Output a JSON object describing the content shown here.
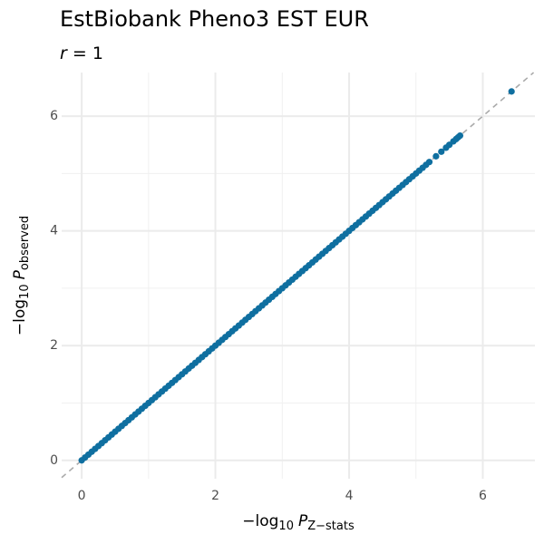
{
  "chart_data": {
    "type": "scatter",
    "title": "EstBiobank Pheno3 EST EUR",
    "subtitle": {
      "var": "r",
      "eq": "= 1"
    },
    "x_label": {
      "prefix": "−log",
      "base": "10",
      "var": "P",
      "sub": "Z−stats"
    },
    "y_label": {
      "prefix": "−log",
      "base": "10",
      "var": "P",
      "sub": "observed"
    },
    "xlim": [
      -0.3,
      6.78
    ],
    "ylim": [
      -0.32,
      6.76
    ],
    "xticks": [
      0,
      2,
      4,
      6
    ],
    "yticks": [
      0,
      2,
      4,
      6
    ],
    "minor_xticks": [
      1,
      3,
      5
    ],
    "minor_yticks": [
      1,
      3,
      5
    ],
    "grid": true,
    "identity_line": true,
    "series": [
      {
        "color": "#0f6fa0",
        "x": [
          0,
          0.05,
          0.1,
          0.15,
          0.2,
          0.25,
          0.3,
          0.35,
          0.4,
          0.45,
          0.5,
          0.55,
          0.6,
          0.65,
          0.7,
          0.75,
          0.8,
          0.85,
          0.9,
          0.95,
          1,
          1.05,
          1.1,
          1.15,
          1.2,
          1.25,
          1.3,
          1.35,
          1.4,
          1.45,
          1.5,
          1.55,
          1.6,
          1.65,
          1.7,
          1.75,
          1.8,
          1.85,
          1.9,
          1.95,
          2,
          2.05,
          2.1,
          2.15,
          2.2,
          2.25,
          2.3,
          2.35,
          2.4,
          2.45,
          2.5,
          2.55,
          2.6,
          2.65,
          2.7,
          2.75,
          2.8,
          2.85,
          2.9,
          2.95,
          3,
          3.05,
          3.1,
          3.15,
          3.2,
          3.25,
          3.3,
          3.35,
          3.4,
          3.45,
          3.5,
          3.55,
          3.6,
          3.65,
          3.7,
          3.75,
          3.8,
          3.85,
          3.9,
          3.95,
          4,
          4.05,
          4.1,
          4.15,
          4.2,
          4.25,
          4.3,
          4.35,
          4.4,
          4.45,
          4.5,
          4.55,
          4.6,
          4.65,
          4.7,
          4.75,
          4.8,
          4.85,
          4.9,
          4.95,
          5,
          5.05,
          5.1,
          5.15,
          5.2,
          5.3,
          5.38,
          5.45,
          5.5,
          5.56,
          5.6,
          5.63,
          5.66,
          6.43
        ],
        "values": [
          0,
          0.05,
          0.1,
          0.15,
          0.2,
          0.25,
          0.3,
          0.35,
          0.4,
          0.45,
          0.5,
          0.55,
          0.6,
          0.65,
          0.7,
          0.75,
          0.8,
          0.85,
          0.9,
          0.95,
          1,
          1.05,
          1.1,
          1.15,
          1.2,
          1.25,
          1.3,
          1.35,
          1.4,
          1.45,
          1.5,
          1.55,
          1.6,
          1.65,
          1.7,
          1.75,
          1.8,
          1.85,
          1.9,
          1.95,
          2,
          2.05,
          2.1,
          2.15,
          2.2,
          2.25,
          2.3,
          2.35,
          2.4,
          2.45,
          2.5,
          2.55,
          2.6,
          2.65,
          2.7,
          2.75,
          2.8,
          2.85,
          2.9,
          2.95,
          3,
          3.05,
          3.1,
          3.15,
          3.2,
          3.25,
          3.3,
          3.35,
          3.4,
          3.45,
          3.5,
          3.55,
          3.6,
          3.65,
          3.7,
          3.75,
          3.8,
          3.85,
          3.9,
          3.95,
          4,
          4.05,
          4.1,
          4.15,
          4.2,
          4.25,
          4.3,
          4.35,
          4.4,
          4.45,
          4.5,
          4.55,
          4.6,
          4.65,
          4.7,
          4.75,
          4.8,
          4.85,
          4.9,
          4.95,
          5,
          5.05,
          5.1,
          5.15,
          5.2,
          5.3,
          5.38,
          5.45,
          5.5,
          5.56,
          5.6,
          5.63,
          5.66,
          6.43
        ]
      }
    ]
  }
}
